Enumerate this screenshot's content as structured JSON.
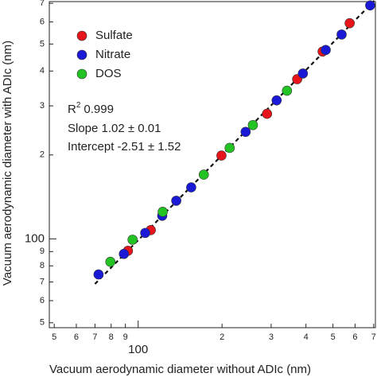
{
  "chart_data": {
    "type": "scatter",
    "x_label": "Vacuum aerodynamic diameter without ADIc (nm)",
    "y_label": "Vacuum aerodynamic diameter with ADIc (nm)",
    "xscale": "log",
    "yscale": "log",
    "xlim": [
      48,
      710
    ],
    "ylim": [
      48,
      710
    ],
    "xticks": [
      {
        "value": 50,
        "label": "5"
      },
      {
        "value": 60,
        "label": "6"
      },
      {
        "value": 70,
        "label": "7"
      },
      {
        "value": 80,
        "label": "8"
      },
      {
        "value": 90,
        "label": "9"
      },
      100,
      {
        "value": 200,
        "label": "2"
      },
      {
        "value": 300,
        "label": "3"
      },
      {
        "value": 400,
        "label": "4"
      },
      {
        "value": 500,
        "label": "5"
      },
      {
        "value": 600,
        "label": "6"
      },
      {
        "value": 700,
        "label": "7"
      }
    ],
    "yticks": [
      {
        "value": 50,
        "label": "5"
      },
      {
        "value": 60,
        "label": "6"
      },
      {
        "value": 70,
        "label": "7"
      },
      {
        "value": 80,
        "label": "8"
      },
      {
        "value": 90,
        "label": "9"
      },
      100,
      {
        "value": 200,
        "label": "2"
      },
      {
        "value": 300,
        "label": "3"
      },
      {
        "value": 400,
        "label": "4"
      },
      {
        "value": 500,
        "label": "5"
      },
      {
        "value": 600,
        "label": "6"
      },
      {
        "value": 700,
        "label": "7"
      }
    ],
    "legend": "upper left",
    "series": [
      {
        "name": "Sulfate",
        "color": "#e8141b",
        "x": [
          91.9,
          111,
          199,
          290,
          372,
          459,
          574
        ],
        "values": [
          90.6,
          107.5,
          199,
          281,
          374,
          470,
          594
        ]
      },
      {
        "name": "Nitrate",
        "color": "#1a1ad6",
        "x": [
          72.1,
          88.9,
          106,
          122,
          137,
          155,
          243,
          314,
          390,
          471,
          537,
          680
        ],
        "values": [
          74.5,
          88.3,
          105,
          121,
          137,
          153,
          242,
          314,
          392,
          476,
          541,
          688
        ]
      },
      {
        "name": "DOS",
        "color": "#22c322",
        "x": [
          79.5,
          95.5,
          122.5,
          172,
          213,
          258,
          342
        ],
        "values": [
          82.7,
          99.3,
          125,
          170,
          212,
          256,
          340
        ]
      }
    ],
    "fit": {
      "slope": 1.02,
      "intercept": -2.51,
      "x": [
        70,
        710
      ]
    },
    "r2": {
      "symbol": "R",
      "exponent": "2",
      "value": "0.999"
    },
    "annotations": [
      "Slope 1.02 ± 0.01",
      "Intercept -2.51 ± 1.52"
    ]
  }
}
